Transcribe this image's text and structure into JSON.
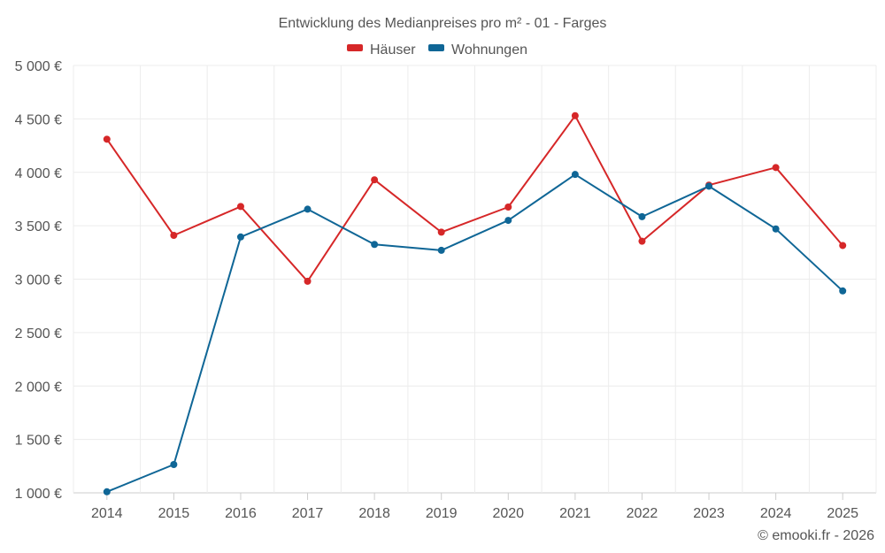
{
  "chart_data": {
    "type": "line",
    "title": "Entwicklung des Medianpreises pro m² - 01 - Farges",
    "categories": [
      "2014",
      "2015",
      "2016",
      "2017",
      "2018",
      "2019",
      "2020",
      "2021",
      "2022",
      "2023",
      "2024",
      "2025"
    ],
    "series": [
      {
        "name": "Häuser",
        "color": "#d62728",
        "values": [
          4310,
          3410,
          3680,
          2980,
          3930,
          3440,
          3675,
          4530,
          3355,
          3880,
          4045,
          3315
        ]
      },
      {
        "name": "Wohnungen",
        "color": "#0f6696",
        "values": [
          1010,
          1265,
          3395,
          3655,
          3325,
          3270,
          3550,
          3980,
          3585,
          3870,
          3470,
          2890
        ]
      }
    ],
    "ylim": [
      1000,
      5000
    ],
    "yticks": [
      1000,
      1500,
      2000,
      2500,
      3000,
      3500,
      4000,
      4500,
      5000
    ],
    "ytick_labels": [
      "1 000 €",
      "1 500 €",
      "2 000 €",
      "2 500 €",
      "3 000 €",
      "3 500 €",
      "4 000 €",
      "4 500 €",
      "5 000 €"
    ],
    "grid": true,
    "legend_position": "top-center"
  },
  "credit": "© emooki.fr - 2026"
}
